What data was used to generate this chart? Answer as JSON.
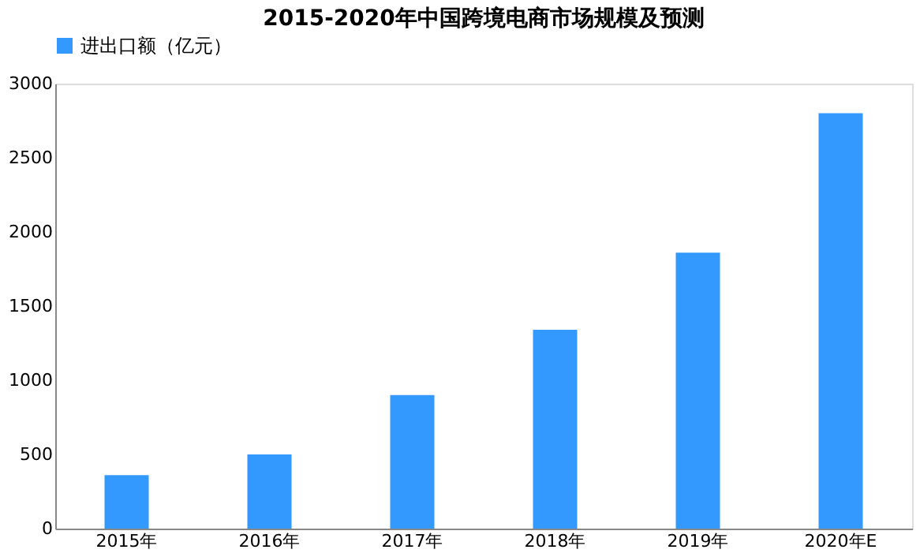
{
  "chart_data": {
    "type": "bar",
    "title": "2015-2020年中国跨境电商市场规模及预测",
    "categories": [
      "2015年",
      "2016年",
      "2017年",
      "2018年",
      "2019年",
      "2020年E"
    ],
    "series": [
      {
        "name": "进出口额（亿元）",
        "color": "#3399ff",
        "values": [
          360,
          500,
          900,
          1340,
          1860,
          2800
        ]
      }
    ],
    "ylim": [
      0,
      3000
    ],
    "yticks": [
      0,
      500,
      1000,
      1500,
      2000,
      2500,
      3000
    ],
    "grid": false,
    "legend": "top"
  }
}
